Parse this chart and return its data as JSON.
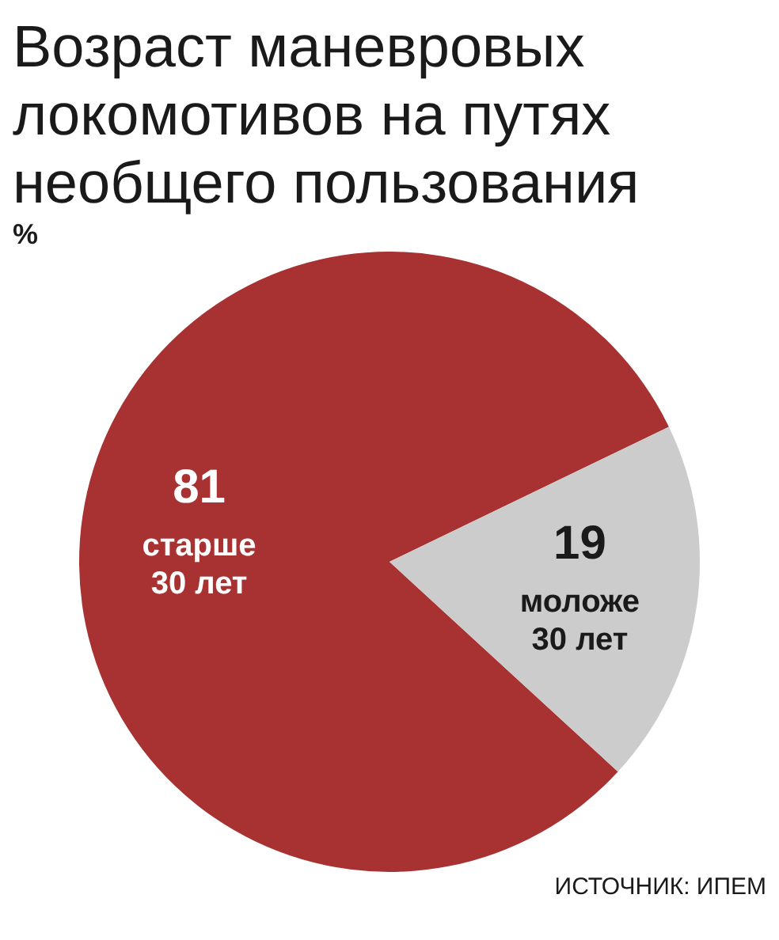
{
  "chart_data": {
    "type": "pie",
    "title": "Возраст маневровых локомотивов на путях необщего пользования",
    "subtitle": "%",
    "categories": [
      "старше 30 лет",
      "моложе 30 лет"
    ],
    "values": [
      81,
      19
    ],
    "colors": [
      "#a83232",
      "#cccccc"
    ],
    "data_labels": true,
    "legend": false,
    "annotations": [
      "ИСТОЧНИК: ИПЕМ"
    ]
  }
}
